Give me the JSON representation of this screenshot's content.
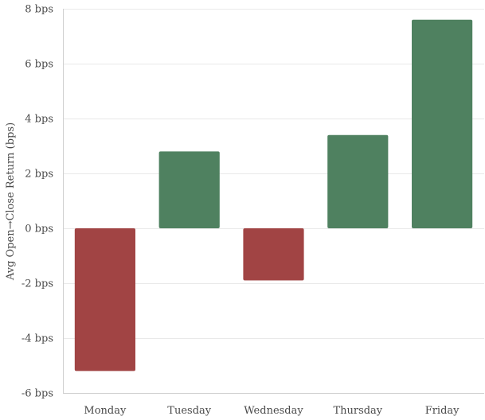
{
  "chart_data": {
    "type": "bar",
    "categories": [
      "Monday",
      "Tuesday",
      "Wednesday",
      "Thursday",
      "Friday"
    ],
    "values": [
      -5.2,
      2.8,
      -1.9,
      3.4,
      7.6
    ],
    "ylabel": "Avg Open→Close Return (bps)",
    "xlabel": "",
    "ylim": [
      -6,
      8
    ],
    "yticks": [
      8,
      6,
      4,
      2,
      0,
      -2,
      -4,
      -6
    ],
    "ytick_labels": [
      "8 bps",
      "6 bps",
      "4 bps",
      "2 bps",
      "0 bps",
      "-2 bps",
      "-4 bps",
      "-6 bps"
    ],
    "grid": true,
    "legend": "none",
    "colors": {
      "positive": "#4f8160",
      "negative": "#a14444"
    }
  }
}
